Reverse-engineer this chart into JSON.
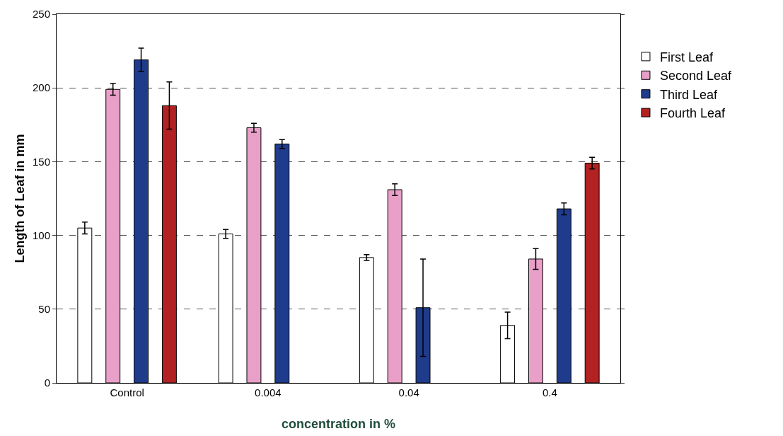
{
  "chart_data": {
    "type": "bar",
    "xlabel": "concentration in %",
    "ylabel": "Length of Leaf in mm",
    "categories": [
      "Control",
      "0.004",
      "0.04",
      "0.4"
    ],
    "series": [
      {
        "name": "First Leaf",
        "color": "#ffffff",
        "values": [
          105,
          101,
          85,
          39
        ],
        "errors": [
          4,
          3,
          2,
          9
        ]
      },
      {
        "name": "Second Leaf",
        "color": "#e8a0c8",
        "values": [
          199,
          173,
          131,
          84
        ],
        "errors": [
          4,
          3,
          4,
          7
        ]
      },
      {
        "name": "Third Leaf",
        "color": "#1f3b8c",
        "values": [
          219,
          162,
          51,
          118
        ],
        "errors": [
          8,
          3,
          33,
          4
        ]
      },
      {
        "name": "Fourth Leaf",
        "color": "#b22222",
        "values": [
          188,
          null,
          null,
          149
        ],
        "errors": [
          16,
          null,
          null,
          4
        ]
      }
    ],
    "ylim": [
      0,
      250
    ],
    "yticks": [
      0,
      50,
      100,
      150,
      200,
      250
    ],
    "grid": "y",
    "legend": "right"
  }
}
